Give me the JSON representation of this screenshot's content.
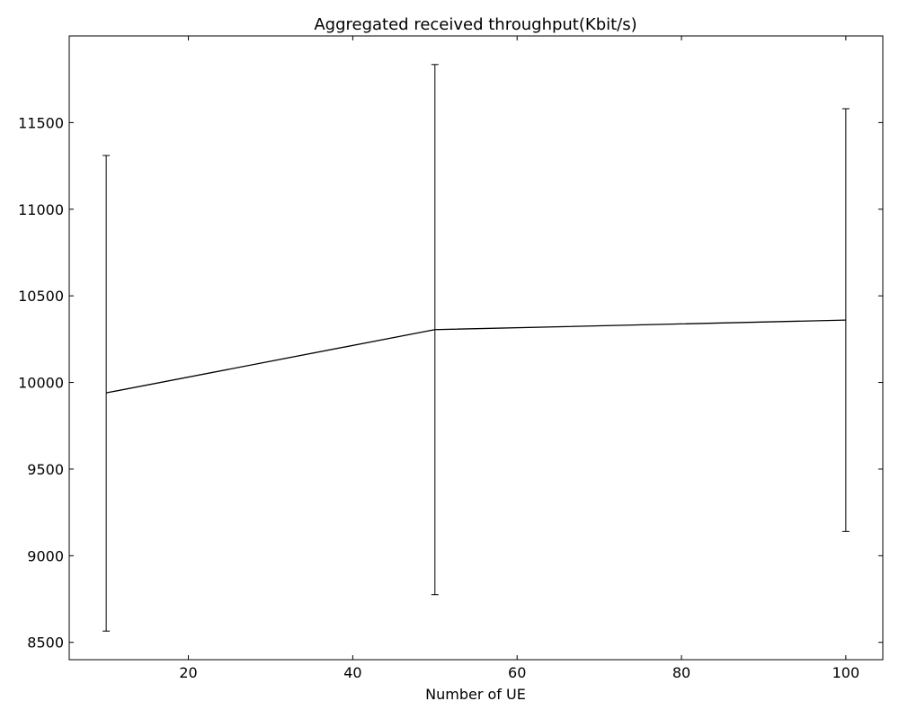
{
  "chart_data": {
    "type": "line",
    "title": "Aggregated received throughput(Kbit/s)",
    "xlabel": "Number of UE",
    "ylabel": "",
    "xlim": [
      5.5,
      104.5
    ],
    "ylim": [
      8400,
      12000
    ],
    "x_ticks": [
      20,
      40,
      60,
      80,
      100
    ],
    "y_ticks": [
      8500,
      9000,
      9500,
      10000,
      10500,
      11000,
      11500
    ],
    "grid": false,
    "legend": "none",
    "colors": {
      "line": "#000000",
      "axes": "#000000",
      "background": "#ffffff"
    },
    "series": [
      {
        "x": [
          10,
          50,
          100
        ],
        "values": [
          9940,
          10305,
          10360
        ],
        "error_low": [
          8565,
          8775,
          9140
        ],
        "error_high": [
          11310,
          11835,
          11580
        ]
      }
    ]
  }
}
